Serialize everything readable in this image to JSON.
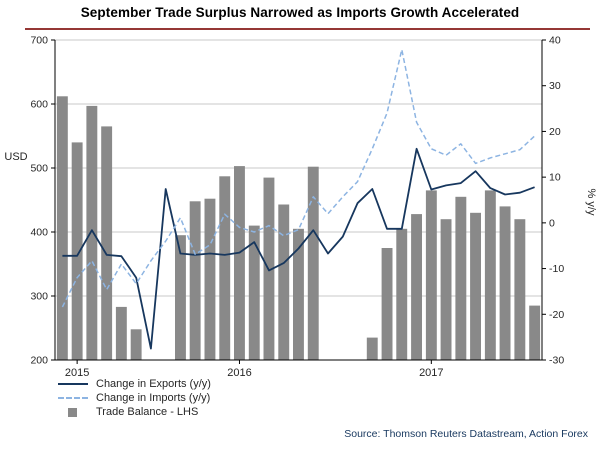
{
  "title": "September Trade Surplus Narrowed as Imports Growth Accelerated",
  "source": "Source: Thomson Reuters Datastream, Action Forex",
  "colors": {
    "title_underline": "#953735",
    "bar": "#898989",
    "exports_line": "#17375e",
    "imports_line": "#8db4e2",
    "gridline": "#c8c8c8",
    "axis": "#000000",
    "source_text": "#17375e"
  },
  "legend": {
    "position": "bottom-left"
  },
  "chart_data": {
    "type": "combo-bar-line",
    "title": "September Trade Surplus Narrowed as Imports Growth Accelerated",
    "grid": "horizontal",
    "legend_position": "bottom-left",
    "categories": [
      "2015-01",
      "2015-02",
      "2015-03",
      "2015-04",
      "2015-05",
      "2015-06",
      "2015-07",
      "2015-08",
      "2015-09",
      "2015-10",
      "2015-11",
      "2015-12",
      "2016-01",
      "2016-02",
      "2016-03",
      "2016-04",
      "2016-05",
      "2016-06",
      "2016-07",
      "2016-08",
      "2016-09",
      "2016-10",
      "2016-11",
      "2016-12",
      "2017-01",
      "2017-02",
      "2017-03",
      "2017-04",
      "2017-05",
      "2017-06",
      "2017-07",
      "2017-08",
      "2017-09"
    ],
    "series": [
      {
        "name": "Change in Exports (y/y)",
        "type": "line",
        "style": "solid",
        "axis": "right",
        "color": "#17375e",
        "values": [
          -7.2,
          -7.2,
          -1.6,
          -7,
          -7.3,
          -12,
          -27.5,
          7.4,
          -6.7,
          -7,
          -6.7,
          -7,
          -6.5,
          -4.2,
          -10.4,
          -8.8,
          -5.6,
          -1.6,
          -6.7,
          -3,
          4.3,
          7.4,
          -1.3,
          -1.3,
          16.2,
          7.3,
          8.2,
          8.7,
          11.3,
          7.6,
          6.2,
          6.6,
          7.8
        ]
      },
      {
        "name": "Change in Imports (y/y)",
        "type": "line",
        "style": "dashed",
        "axis": "right",
        "color": "#8db4e2",
        "values": [
          -18.4,
          -12,
          -8.3,
          -14.6,
          -9,
          -13.3,
          -8.3,
          -4,
          1.1,
          -6.9,
          -4.8,
          1.9,
          -1,
          -2,
          -0.6,
          -2.8,
          -1.5,
          5.7,
          2,
          5.7,
          9,
          16.2,
          24,
          37.9,
          22,
          16.2,
          14.8,
          17.3,
          13,
          14.2,
          15.1,
          16,
          19
        ]
      },
      {
        "name": "Trade Balance - LHS",
        "type": "bar",
        "axis": "left",
        "color": "#898989",
        "values": [
          612,
          540,
          597,
          565,
          283,
          248,
          null,
          null,
          395,
          448,
          452,
          487,
          503,
          410,
          485,
          443,
          405,
          502,
          null,
          null,
          null,
          235,
          375,
          405,
          428,
          465,
          420,
          455,
          430,
          465,
          440,
          420,
          285
        ]
      }
    ],
    "left_axis": {
      "label": "USD",
      "min": 200,
      "max": 700,
      "ticks": [
        200,
        300,
        400,
        500,
        600,
        700
      ]
    },
    "right_axis": {
      "label": "% y/y",
      "min": -30,
      "max": 40,
      "ticks": [
        -30,
        -20,
        -10,
        0,
        10,
        20,
        30,
        40
      ]
    },
    "x_axis": {
      "tick_labels": [
        "2015",
        "2016",
        "2017"
      ],
      "tick_positions": [
        1,
        12,
        25
      ]
    }
  }
}
